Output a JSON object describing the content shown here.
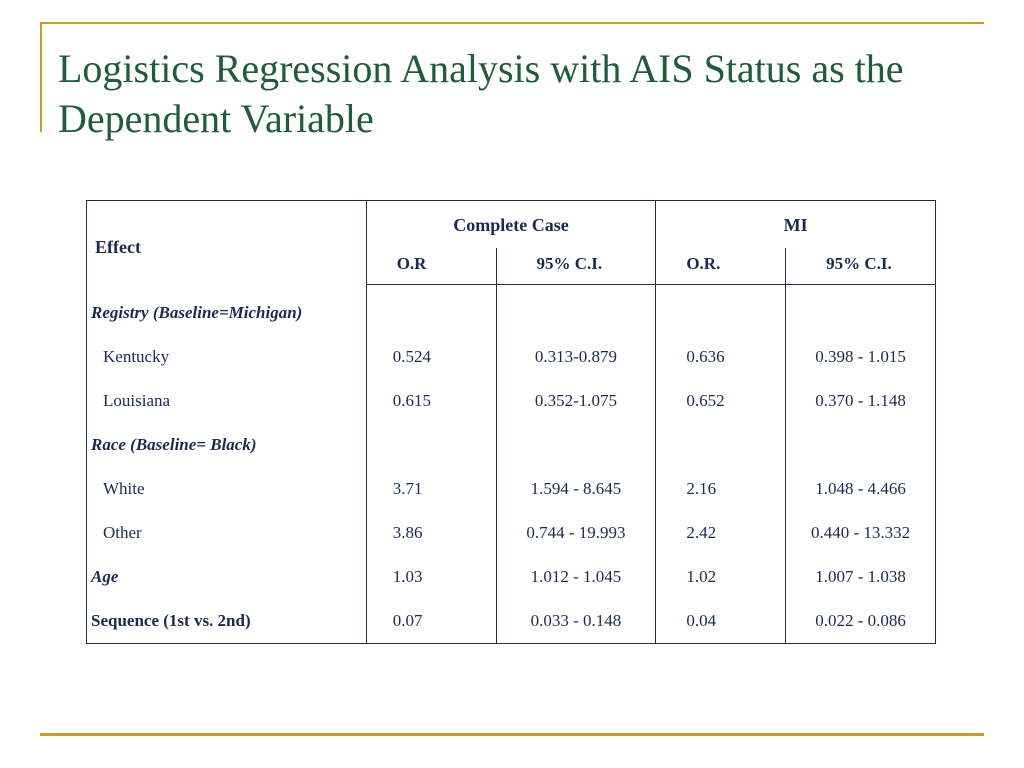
{
  "title": "Logistics Regression Analysis with AIS Status as the Dependent Variable",
  "colors": {
    "title_text": "#1f5c3d",
    "rule": "#c5a029",
    "table_text": "#1a2a52",
    "table_border": "#1a2a52",
    "background": "#ffffff"
  },
  "typography": {
    "title_fontsize_pt": 30,
    "table_fontsize_pt": 13,
    "font_family": "serif (Garamond/Georgia-like)"
  },
  "table": {
    "effect_header": "Effect",
    "groups": [
      {
        "label": "Complete Case",
        "sub": [
          "O.R",
          "95% C.I."
        ]
      },
      {
        "label": "MI",
        "sub": [
          "O.R.",
          "95% C.I."
        ]
      }
    ],
    "rows": [
      {
        "type": "section",
        "label": "Registry (Baseline=Michigan)"
      },
      {
        "type": "data",
        "label": "Kentucky",
        "cc_or": "0.524",
        "cc_ci": "0.313-0.879",
        "mi_or": "0.636",
        "mi_ci": "0.398 - 1.015"
      },
      {
        "type": "data",
        "label": "Louisiana",
        "cc_or": "0.615",
        "cc_ci": "0.352-1.075",
        "mi_or": "0.652",
        "mi_ci": "0.370 - 1.148"
      },
      {
        "type": "section",
        "label": "Race (Baseline= Black)"
      },
      {
        "type": "data",
        "label": "White",
        "cc_or": "3.71",
        "cc_ci": "1.594 - 8.645",
        "mi_or": "2.16",
        "mi_ci": "1.048 - 4.466"
      },
      {
        "type": "data",
        "label": "Other",
        "cc_or": "3.86",
        "cc_ci": "0.744 - 19.993",
        "mi_or": "2.42",
        "mi_ci": "0.440 - 13.332"
      },
      {
        "type": "bold_italic",
        "label": "Age",
        "cc_or": "1.03",
        "cc_ci": "1.012 - 1.045",
        "mi_or": "1.02",
        "mi_ci": "1.007 - 1.038"
      },
      {
        "type": "bold",
        "label": "Sequence (1st vs. 2nd)",
        "cc_or": "0.07",
        "cc_ci": "0.033 - 0.148",
        "mi_or": "0.04",
        "mi_ci": "0.022 - 0.086"
      }
    ]
  }
}
